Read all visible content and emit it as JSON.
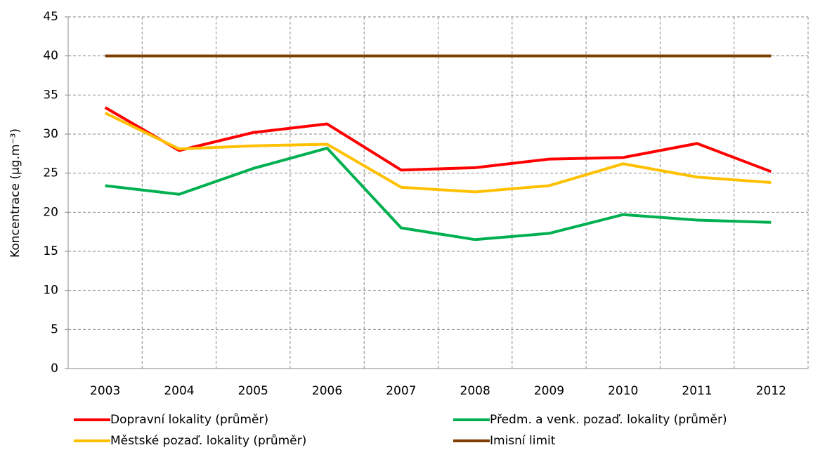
{
  "chart_data": {
    "type": "line",
    "y_label": "Koncentrace (µg.m⁻³)",
    "categories": [
      "2003",
      "2004",
      "2005",
      "2006",
      "2007",
      "2008",
      "2009",
      "2010",
      "2011",
      "2012"
    ],
    "series": [
      {
        "name": "Dopravní lokality (průměr)",
        "color": "#ff0000",
        "values": [
          33.4,
          27.9,
          30.2,
          31.3,
          25.4,
          25.7,
          26.8,
          27.0,
          28.8,
          25.2
        ]
      },
      {
        "name": "Předm. a venk. pozaď. lokality (průměr)",
        "color": "#00b050",
        "values": [
          23.4,
          22.3,
          25.6,
          28.2,
          18.0,
          16.5,
          17.3,
          19.7,
          19.0,
          18.7
        ]
      },
      {
        "name": "Městské pozaď. lokality (průměr)",
        "color": "#ffc000",
        "values": [
          32.7,
          28.1,
          28.5,
          28.7,
          23.2,
          22.6,
          23.4,
          26.2,
          24.5,
          23.8
        ]
      },
      {
        "name": "Imisní limit",
        "color": "#7f3f00",
        "values": [
          40,
          40,
          40,
          40,
          40,
          40,
          40,
          40,
          40,
          40
        ]
      }
    ],
    "ylim": [
      0,
      45
    ],
    "yticks": [
      0,
      5,
      10,
      15,
      20,
      25,
      30,
      35,
      40,
      45
    ],
    "grid": true
  }
}
